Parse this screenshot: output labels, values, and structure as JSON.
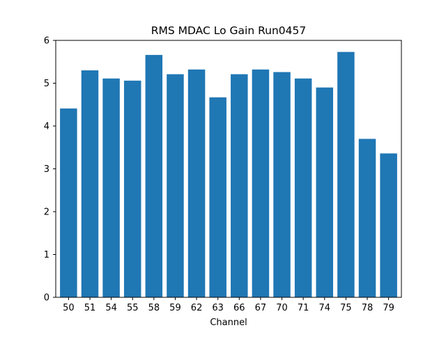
{
  "chart_data": {
    "type": "bar",
    "title": "RMS MDAC Lo Gain Run0457",
    "xlabel": "Channel",
    "ylabel": "",
    "categories": [
      "50",
      "51",
      "54",
      "55",
      "58",
      "59",
      "62",
      "63",
      "66",
      "67",
      "70",
      "71",
      "74",
      "75",
      "78",
      "79"
    ],
    "values": [
      4.41,
      5.3,
      5.11,
      5.06,
      5.66,
      5.21,
      5.32,
      4.67,
      5.21,
      5.32,
      5.26,
      5.11,
      4.9,
      5.73,
      3.7,
      3.36
    ],
    "ylim": [
      0,
      6
    ],
    "yticks": [
      "0",
      "1",
      "2",
      "3",
      "4",
      "5",
      "6"
    ],
    "grid": false,
    "bar_color": "#1f77b4"
  }
}
